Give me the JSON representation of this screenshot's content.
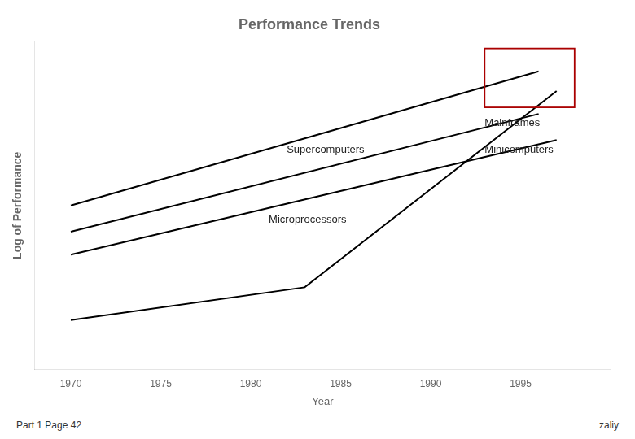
{
  "chart_data": {
    "type": "line",
    "title": "Performance Trends",
    "xlabel": "Year",
    "ylabel": "Log of Performance",
    "footer": [
      "Part 1 Page 42",
      "zaliy"
    ],
    "xlim": [
      1968,
      2000
    ],
    "ylim": [
      0,
      10
    ],
    "xticks": [
      1970,
      1975,
      1980,
      1985,
      1990,
      1995
    ],
    "grid": false,
    "tick_labels": "x",
    "series": [
      {
        "name": "Supercomputers",
        "color": "#000000",
        "x": [
          1970,
          1996
        ],
        "values": [
          5.0,
          9.1
        ],
        "label_x": 1982,
        "label_y": 6.55
      },
      {
        "name": "Mainframes",
        "color": "#000000",
        "x": [
          1970,
          1996
        ],
        "values": [
          4.2,
          7.8
        ],
        "label_x": 1993,
        "label_y": 7.35
      },
      {
        "name": "Minicomputers",
        "color": "#000000",
        "x": [
          1970,
          1997
        ],
        "values": [
          3.5,
          7.0
        ],
        "label_x": 1993,
        "label_y": 6.55
      },
      {
        "name": "Microprocessors",
        "color": "#000000",
        "x": [
          1970,
          1983,
          1997
        ],
        "values": [
          1.5,
          2.5,
          8.5
        ],
        "label_x": 1981,
        "label_y": 4.4
      }
    ],
    "box": {
      "x": 1993,
      "y": 8.0,
      "width": 5.0,
      "height": 1.8,
      "color": "#aa0000"
    }
  }
}
